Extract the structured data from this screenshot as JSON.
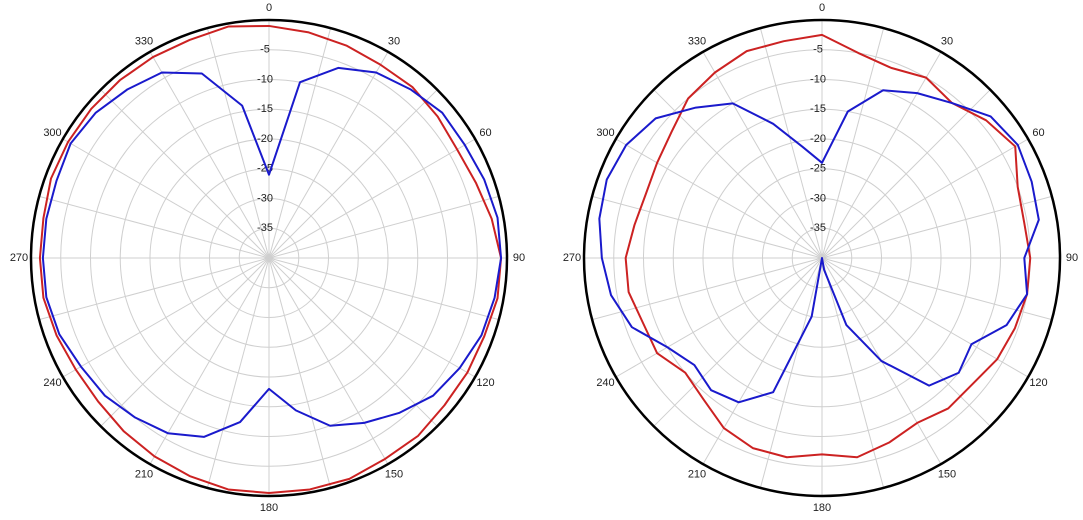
{
  "chart_data": [
    {
      "type": "polar",
      "x": [
        0,
        10,
        20,
        30,
        40,
        50,
        60,
        70,
        80,
        90,
        100,
        110,
        120,
        130,
        140,
        150,
        160,
        170,
        180,
        190,
        200,
        210,
        220,
        230,
        240,
        250,
        260,
        270,
        280,
        290,
        300,
        310,
        320,
        330,
        340,
        350
      ],
      "rlim": [
        -40,
        0
      ],
      "rticks": [
        -5,
        -10,
        -15,
        -20,
        -25,
        -30,
        -35
      ],
      "thetaticks": [
        0,
        30,
        60,
        90,
        120,
        150,
        180,
        210,
        240,
        270,
        300,
        330
      ],
      "series": [
        {
          "color": "#cc2222",
          "values": [
            -1,
            -1.5,
            -2,
            -2.5,
            -2.5,
            -3,
            -3.5,
            -3,
            -2,
            -1,
            -1,
            -1.5,
            -1.5,
            -1.5,
            -1,
            -1,
            -0.5,
            -0.5,
            -0.5,
            -0.5,
            -1,
            -1.5,
            -2,
            -2.5,
            -2.5,
            -2,
            -1.5,
            -1.5,
            -1.5,
            -1,
            -1,
            -1,
            -1,
            -1,
            -1,
            -0.5
          ]
        },
        {
          "color": "#1a1acc",
          "values": [
            -26,
            -10,
            -6,
            -4,
            -3,
            -2,
            -2,
            -1.5,
            -1,
            -1,
            -1.5,
            -2,
            -3,
            -4,
            -6,
            -8,
            -10,
            -14,
            -18,
            -12,
            -8,
            -6,
            -5,
            -4,
            -3.5,
            -2.5,
            -2,
            -2,
            -2,
            -2,
            -1.5,
            -2,
            -3,
            -4,
            -7,
            -14
          ]
        }
      ]
    },
    {
      "type": "polar",
      "x": [
        0,
        10,
        20,
        30,
        40,
        50,
        60,
        70,
        80,
        90,
        100,
        110,
        120,
        130,
        140,
        150,
        160,
        170,
        180,
        190,
        200,
        210,
        220,
        230,
        240,
        250,
        260,
        270,
        280,
        290,
        300,
        310,
        320,
        330,
        340,
        350
      ],
      "rlim": [
        -40,
        0
      ],
      "rticks": [
        -5,
        -10,
        -15,
        -20,
        -25,
        -30,
        -35
      ],
      "thetaticks": [
        0,
        30,
        60,
        90,
        120,
        150,
        180,
        210,
        240,
        270,
        300,
        330
      ],
      "series": [
        {
          "color": "#cc2222",
          "values": [
            -2.5,
            -5,
            -6,
            -5,
            -6,
            -4,
            -2.5,
            -5,
            -5.5,
            -5,
            -5,
            -5.5,
            -6,
            -7,
            -7,
            -8,
            -7,
            -6,
            -7,
            -6,
            -6,
            -7,
            -9,
            -10,
            -8,
            -8,
            -7,
            -7,
            -8,
            -8.5,
            -8,
            -7,
            -5,
            -4,
            -3,
            -3
          ]
        },
        {
          "color": "#1a1acc",
          "values": [
            -24,
            -15,
            -10,
            -8,
            -6,
            -3,
            -2,
            -2.5,
            -3,
            -6,
            -5,
            -7,
            -11,
            -10,
            -12,
            -20,
            -28,
            -38,
            -40,
            -30,
            -16,
            -12,
            -11,
            -12,
            -10,
            -6,
            -4,
            -3,
            -2,
            -1.5,
            -2,
            -3.5,
            -7,
            -10,
            -16,
            -21
          ]
        }
      ]
    }
  ]
}
